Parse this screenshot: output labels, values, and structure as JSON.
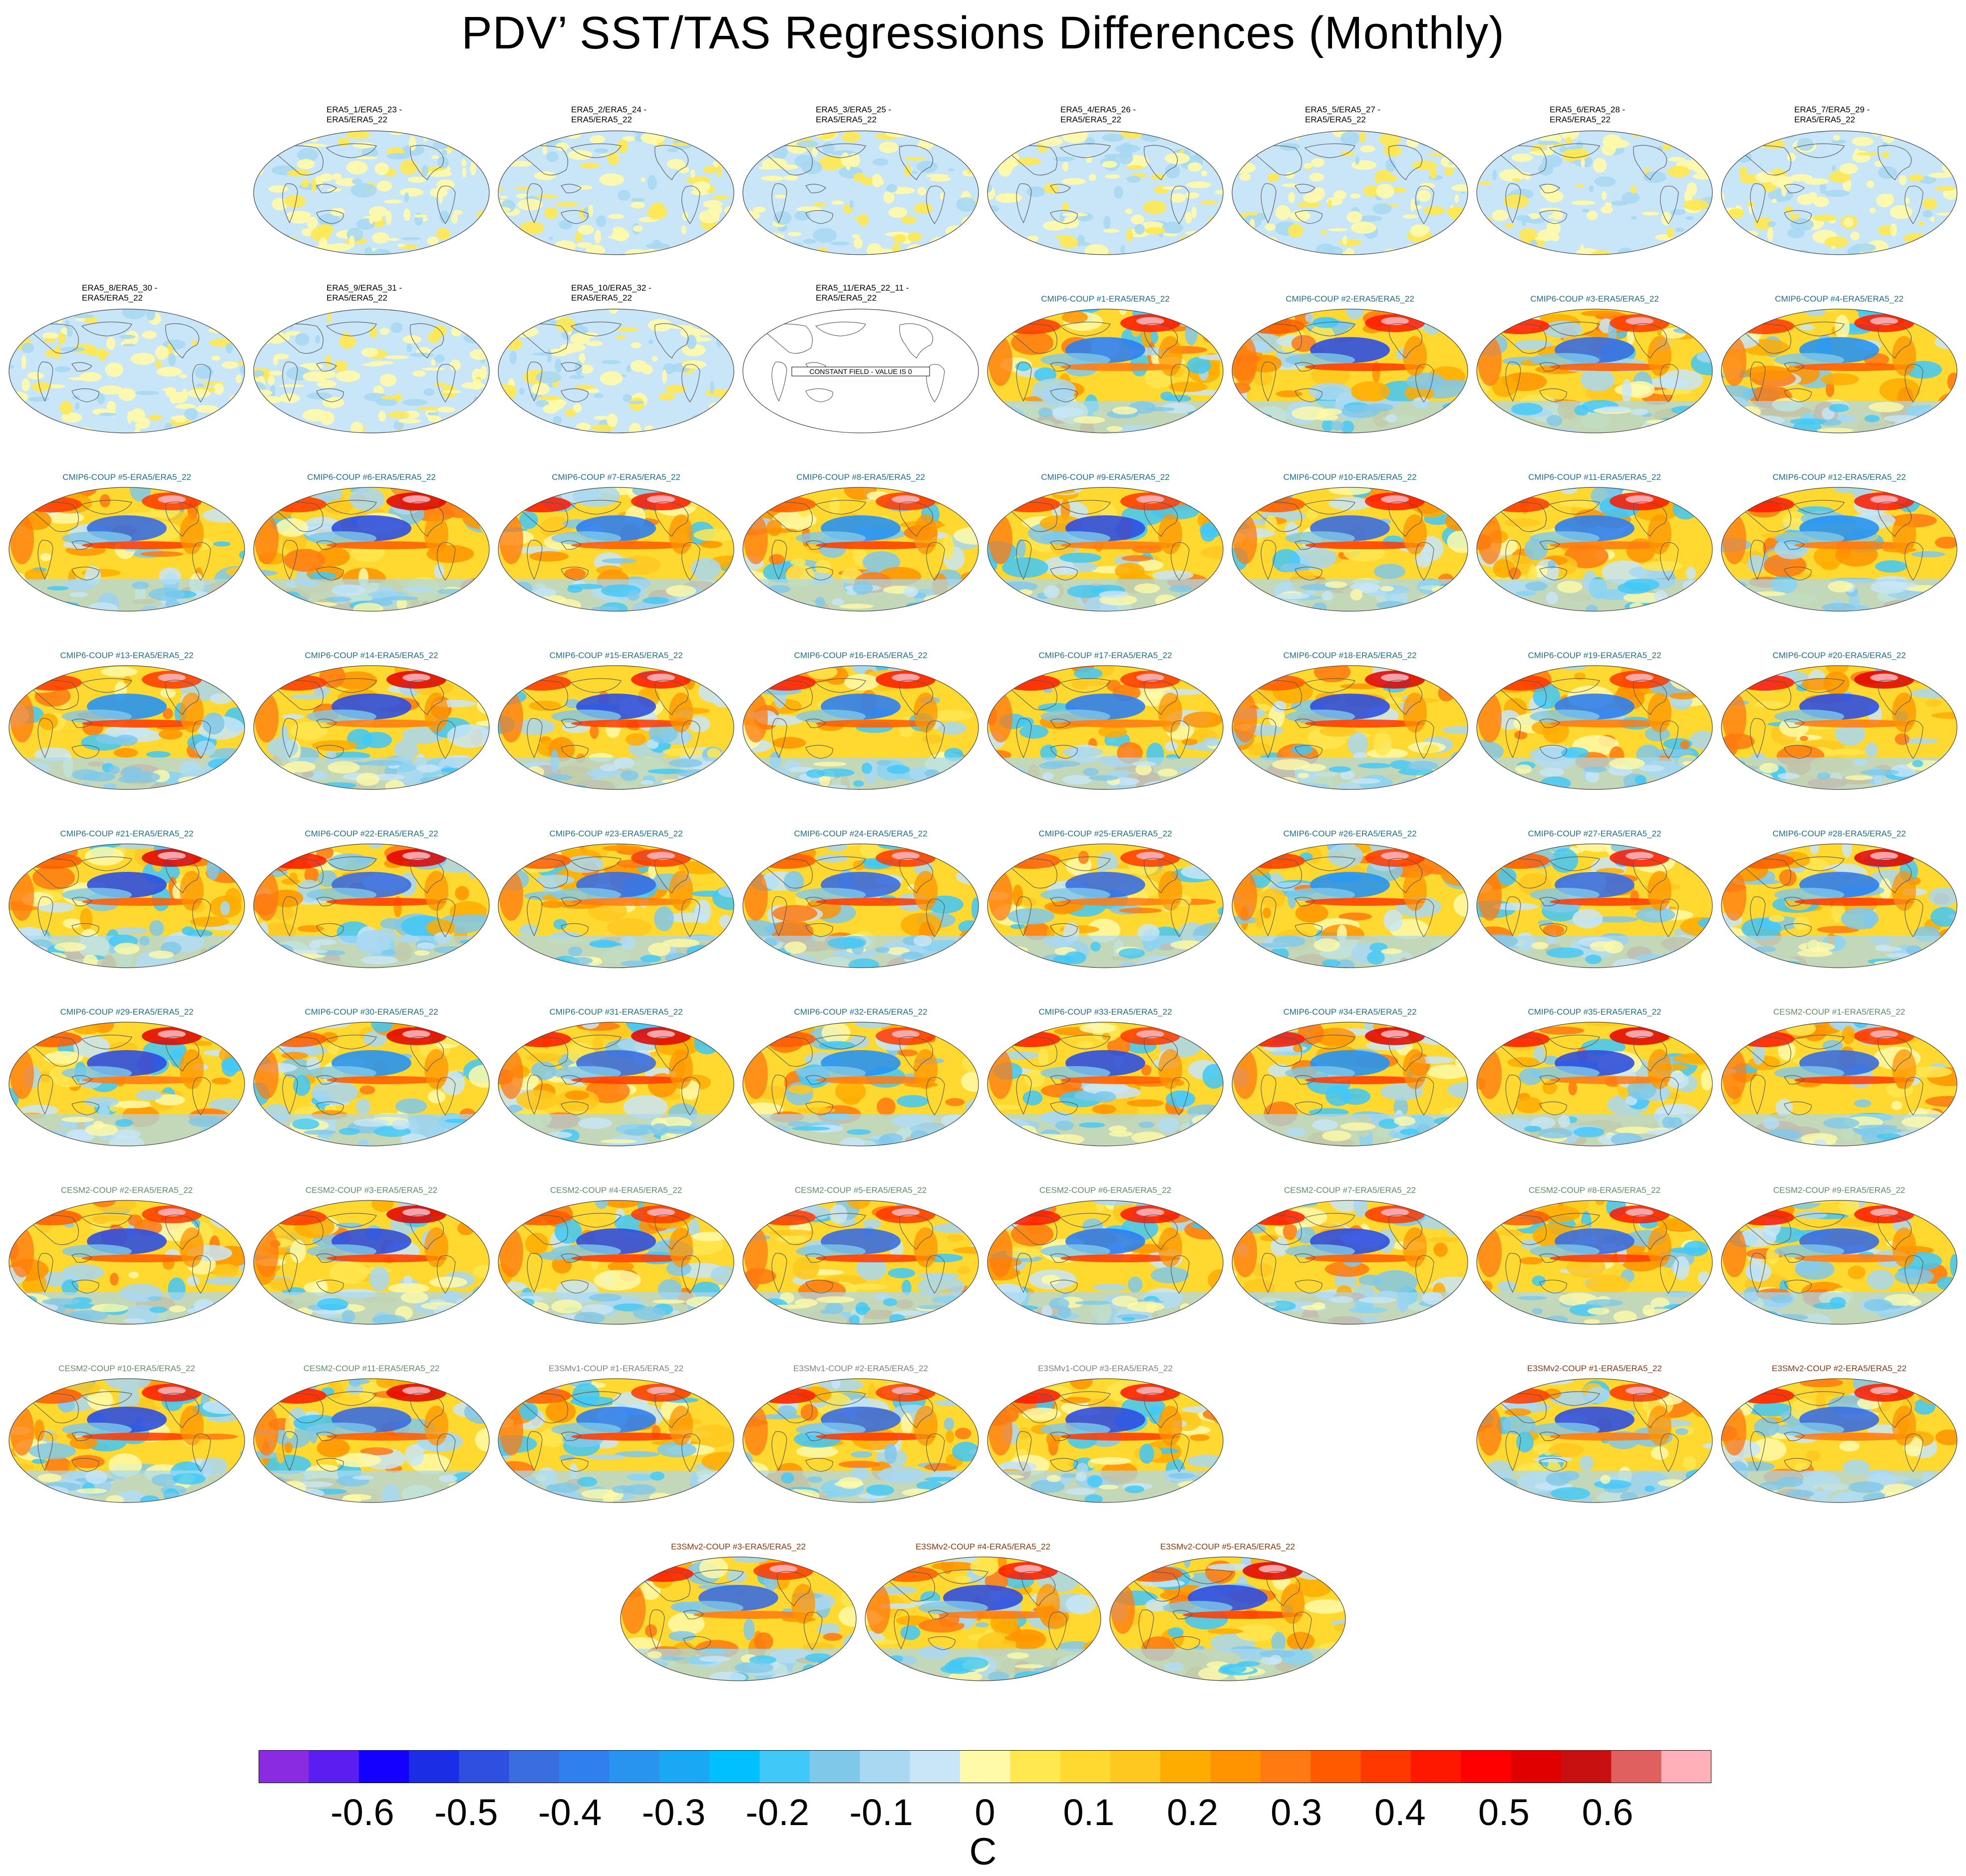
{
  "chart_data": {
    "type": "heatmap",
    "title": "PDV’ SST/TAS Regressions Differences (Monthly)",
    "colorbar": {
      "units": "C",
      "tick_labels": [
        "-0.6",
        "-0.5",
        "-0.4",
        "-0.3",
        "-0.2",
        "-0.1",
        "0",
        "0.1",
        "0.2",
        "0.3",
        "0.4",
        "0.5",
        "0.6"
      ],
      "colors": [
        "#8a2be2",
        "#5a1ff0",
        "#1400ff",
        "#1b2ee6",
        "#2f4fe0",
        "#3a6ee0",
        "#2f80ee",
        "#2894f0",
        "#1aa8f5",
        "#00c0ff",
        "#40c8f8",
        "#80c8ea",
        "#a8d8f2",
        "#c8e6f8",
        "#fffaa8",
        "#ffe850",
        "#ffd830",
        "#ffc820",
        "#ffac00",
        "#ff9400",
        "#ff7a10",
        "#ff5a00",
        "#ff3800",
        "#ff1800",
        "#ff0000",
        "#e00000",
        "#c81010",
        "#e06060",
        "#ffb0b8"
      ],
      "range": [
        -0.7,
        0.7
      ]
    },
    "panels": [
      {
        "label": "ERA5_1/ERA5_23 -\nERA5/ERA5_22",
        "group": "era5",
        "color": "#000000",
        "row": 0,
        "col": 1
      },
      {
        "label": "ERA5_2/ERA5_24 -\nERA5/ERA5_22",
        "group": "era5",
        "color": "#000000",
        "row": 0,
        "col": 2
      },
      {
        "label": "ERA5_3/ERA5_25 -\nERA5/ERA5_22",
        "group": "era5",
        "color": "#000000",
        "row": 0,
        "col": 3
      },
      {
        "label": "ERA5_4/ERA5_26 -\nERA5/ERA5_22",
        "group": "era5",
        "color": "#000000",
        "row": 0,
        "col": 4
      },
      {
        "label": "ERA5_5/ERA5_27 -\nERA5/ERA5_22",
        "group": "era5",
        "color": "#000000",
        "row": 0,
        "col": 5
      },
      {
        "label": "ERA5_6/ERA5_28 -\nERA5/ERA5_22",
        "group": "era5",
        "color": "#000000",
        "row": 0,
        "col": 6
      },
      {
        "label": "ERA5_7/ERA5_29 -\nERA5/ERA5_22",
        "group": "era5",
        "color": "#000000",
        "row": 0,
        "col": 7
      },
      {
        "label": "ERA5_8/ERA5_30 -\nERA5/ERA5_22",
        "group": "era5",
        "color": "#000000",
        "row": 1,
        "col": 0
      },
      {
        "label": "ERA5_9/ERA5_31 -\nERA5/ERA5_22",
        "group": "era5",
        "color": "#000000",
        "row": 1,
        "col": 1
      },
      {
        "label": "ERA5_10/ERA5_32 -\nERA5/ERA5_22",
        "group": "era5",
        "color": "#000000",
        "row": 1,
        "col": 2
      },
      {
        "label": "ERA5_11/ERA5_22_11 -\nERA5/ERA5_22",
        "group": "constant",
        "color": "#000000",
        "row": 1,
        "col": 3,
        "note": "CONSTANT FIELD - VALUE IS 0"
      },
      {
        "label": "CMIP6-COUP  #1-ERA5/ERA5_22",
        "group": "model",
        "color": "#1f6f8b",
        "row": 1,
        "col": 4
      },
      {
        "label": "CMIP6-COUP  #2-ERA5/ERA5_22",
        "group": "model",
        "color": "#1f6f8b",
        "row": 1,
        "col": 5
      },
      {
        "label": "CMIP6-COUP  #3-ERA5/ERA5_22",
        "group": "model",
        "color": "#1f6f8b",
        "row": 1,
        "col": 6
      },
      {
        "label": "CMIP6-COUP  #4-ERA5/ERA5_22",
        "group": "model",
        "color": "#1f6f8b",
        "row": 1,
        "col": 7
      },
      {
        "label": "CMIP6-COUP  #5-ERA5/ERA5_22",
        "group": "model",
        "color": "#1f6f8b",
        "row": 2,
        "col": 0
      },
      {
        "label": "CMIP6-COUP  #6-ERA5/ERA5_22",
        "group": "model",
        "color": "#1f6f8b",
        "row": 2,
        "col": 1
      },
      {
        "label": "CMIP6-COUP  #7-ERA5/ERA5_22",
        "group": "model",
        "color": "#1f6f8b",
        "row": 2,
        "col": 2
      },
      {
        "label": "CMIP6-COUP  #8-ERA5/ERA5_22",
        "group": "model",
        "color": "#1f6f8b",
        "row": 2,
        "col": 3
      },
      {
        "label": "CMIP6-COUP  #9-ERA5/ERA5_22",
        "group": "model",
        "color": "#1f6f8b",
        "row": 2,
        "col": 4
      },
      {
        "label": "CMIP6-COUP  #10-ERA5/ERA5_22",
        "group": "model",
        "color": "#1f6f8b",
        "row": 2,
        "col": 5
      },
      {
        "label": "CMIP6-COUP  #11-ERA5/ERA5_22",
        "group": "model",
        "color": "#1f6f8b",
        "row": 2,
        "col": 6
      },
      {
        "label": "CMIP6-COUP  #12-ERA5/ERA5_22",
        "group": "model",
        "color": "#1f6f8b",
        "row": 2,
        "col": 7
      },
      {
        "label": "CMIP6-COUP  #13-ERA5/ERA5_22",
        "group": "model",
        "color": "#1f6f8b",
        "row": 3,
        "col": 0
      },
      {
        "label": "CMIP6-COUP  #14-ERA5/ERA5_22",
        "group": "model",
        "color": "#1f6f8b",
        "row": 3,
        "col": 1
      },
      {
        "label": "CMIP6-COUP  #15-ERA5/ERA5_22",
        "group": "model",
        "color": "#1f6f8b",
        "row": 3,
        "col": 2
      },
      {
        "label": "CMIP6-COUP  #16-ERA5/ERA5_22",
        "group": "model",
        "color": "#1f6f8b",
        "row": 3,
        "col": 3
      },
      {
        "label": "CMIP6-COUP  #17-ERA5/ERA5_22",
        "group": "model",
        "color": "#1f6f8b",
        "row": 3,
        "col": 4
      },
      {
        "label": "CMIP6-COUP  #18-ERA5/ERA5_22",
        "group": "model",
        "color": "#1f6f8b",
        "row": 3,
        "col": 5
      },
      {
        "label": "CMIP6-COUP  #19-ERA5/ERA5_22",
        "group": "model",
        "color": "#1f6f8b",
        "row": 3,
        "col": 6
      },
      {
        "label": "CMIP6-COUP  #20-ERA5/ERA5_22",
        "group": "model",
        "color": "#1f6f8b",
        "row": 3,
        "col": 7
      },
      {
        "label": "CMIP6-COUP  #21-ERA5/ERA5_22",
        "group": "model",
        "color": "#1f6f8b",
        "row": 4,
        "col": 0
      },
      {
        "label": "CMIP6-COUP  #22-ERA5/ERA5_22",
        "group": "model",
        "color": "#1f6f8b",
        "row": 4,
        "col": 1
      },
      {
        "label": "CMIP6-COUP  #23-ERA5/ERA5_22",
        "group": "model",
        "color": "#1f6f8b",
        "row": 4,
        "col": 2
      },
      {
        "label": "CMIP6-COUP  #24-ERA5/ERA5_22",
        "group": "model",
        "color": "#1f6f8b",
        "row": 4,
        "col": 3
      },
      {
        "label": "CMIP6-COUP  #25-ERA5/ERA5_22",
        "group": "model",
        "color": "#1f6f8b",
        "row": 4,
        "col": 4
      },
      {
        "label": "CMIP6-COUP  #26-ERA5/ERA5_22",
        "group": "model",
        "color": "#1f6f8b",
        "row": 4,
        "col": 5
      },
      {
        "label": "CMIP6-COUP  #27-ERA5/ERA5_22",
        "group": "model",
        "color": "#1f6f8b",
        "row": 4,
        "col": 6
      },
      {
        "label": "CMIP6-COUP  #28-ERA5/ERA5_22",
        "group": "model",
        "color": "#1f6f8b",
        "row": 4,
        "col": 7
      },
      {
        "label": "CMIP6-COUP  #29-ERA5/ERA5_22",
        "group": "model",
        "color": "#1f6f8b",
        "row": 5,
        "col": 0
      },
      {
        "label": "CMIP6-COUP  #30-ERA5/ERA5_22",
        "group": "model",
        "color": "#1f6f8b",
        "row": 5,
        "col": 1
      },
      {
        "label": "CMIP6-COUP  #31-ERA5/ERA5_22",
        "group": "model",
        "color": "#1f6f8b",
        "row": 5,
        "col": 2
      },
      {
        "label": "CMIP6-COUP  #32-ERA5/ERA5_22",
        "group": "model",
        "color": "#1f6f8b",
        "row": 5,
        "col": 3
      },
      {
        "label": "CMIP6-COUP  #33-ERA5/ERA5_22",
        "group": "model",
        "color": "#1f6f8b",
        "row": 5,
        "col": 4
      },
      {
        "label": "CMIP6-COUP  #34-ERA5/ERA5_22",
        "group": "model",
        "color": "#1f6f8b",
        "row": 5,
        "col": 5
      },
      {
        "label": "CMIP6-COUP  #35-ERA5/ERA5_22",
        "group": "model",
        "color": "#1f6f8b",
        "row": 5,
        "col": 6
      },
      {
        "label": "CESM2-COUP  #1-ERA5/ERA5_22",
        "group": "model",
        "color": "#5f8f66",
        "row": 5,
        "col": 7
      },
      {
        "label": "CESM2-COUP  #2-ERA5/ERA5_22",
        "group": "model",
        "color": "#5f8f66",
        "row": 6,
        "col": 0
      },
      {
        "label": "CESM2-COUP  #3-ERA5/ERA5_22",
        "group": "model",
        "color": "#5f8f66",
        "row": 6,
        "col": 1
      },
      {
        "label": "CESM2-COUP  #4-ERA5/ERA5_22",
        "group": "model",
        "color": "#5f8f66",
        "row": 6,
        "col": 2
      },
      {
        "label": "CESM2-COUP  #5-ERA5/ERA5_22",
        "group": "model",
        "color": "#5f8f66",
        "row": 6,
        "col": 3
      },
      {
        "label": "CESM2-COUP  #6-ERA5/ERA5_22",
        "group": "model",
        "color": "#5f8f66",
        "row": 6,
        "col": 4
      },
      {
        "label": "CESM2-COUP  #7-ERA5/ERA5_22",
        "group": "model",
        "color": "#5f8f66",
        "row": 6,
        "col": 5
      },
      {
        "label": "CESM2-COUP  #8-ERA5/ERA5_22",
        "group": "model",
        "color": "#5f8f66",
        "row": 6,
        "col": 6
      },
      {
        "label": "CESM2-COUP  #9-ERA5/ERA5_22",
        "group": "model",
        "color": "#5f8f66",
        "row": 6,
        "col": 7
      },
      {
        "label": "CESM2-COUP  #10-ERA5/ERA5_22",
        "group": "model",
        "color": "#5f8f66",
        "row": 7,
        "col": 0
      },
      {
        "label": "CESM2-COUP  #11-ERA5/ERA5_22",
        "group": "model",
        "color": "#5f8f66",
        "row": 7,
        "col": 1
      },
      {
        "label": "E3SMv1-COUP  #1-ERA5/ERA5_22",
        "group": "model",
        "color": "#808080",
        "row": 7,
        "col": 2
      },
      {
        "label": "E3SMv1-COUP  #2-ERA5/ERA5_22",
        "group": "model",
        "color": "#808080",
        "row": 7,
        "col": 3
      },
      {
        "label": "E3SMv1-COUP  #3-ERA5/ERA5_22",
        "group": "model",
        "color": "#808080",
        "row": 7,
        "col": 4
      },
      {
        "label": "E3SMv2-COUP  #1-ERA5/ERA5_22",
        "group": "model",
        "color": "#8b3a0f",
        "row": 7,
        "col": 6
      },
      {
        "label": "E3SMv2-COUP  #2-ERA5/ERA5_22",
        "group": "model",
        "color": "#8b3a0f",
        "row": 7,
        "col": 7
      },
      {
        "label": "E3SMv2-COUP  #3-ERA5/ERA5_22",
        "group": "model",
        "color": "#8b3a0f",
        "row": 8,
        "col": 2.5
      },
      {
        "label": "E3SMv2-COUP  #4-ERA5/ERA5_22",
        "group": "model",
        "color": "#8b3a0f",
        "row": 8,
        "col": 3.5
      },
      {
        "label": "E3SMv2-COUP  #5-ERA5/ERA5_22",
        "group": "model",
        "color": "#8b3a0f",
        "row": 8,
        "col": 4.5
      }
    ]
  }
}
